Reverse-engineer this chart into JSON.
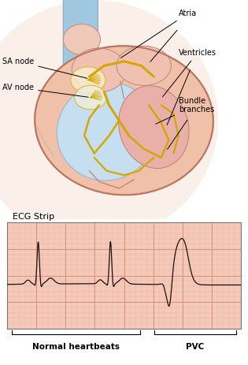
{
  "fig_width": 3.15,
  "fig_height": 4.63,
  "dpi": 100,
  "bg_color": "#ffffff",
  "ecg_bg_color": "#f5c8b8",
  "ecg_grid_major_color": "#d9917a",
  "ecg_grid_minor_color": "#ebb9a8",
  "ecg_line_color": "#1a1010",
  "ecg_title": "ECG Strip",
  "ecg_label_normal": "Normal heartbeats",
  "ecg_label_pvc": "PVC",
  "heart_bg": "#fce8e0",
  "aorta_color": "#9abfda",
  "pulm_color": "#c8d8e8",
  "heart_outer_color": "#f0b8a0",
  "heart_outer_edge": "#cc8870",
  "ventricle_right_color": "#c8dff0",
  "ventricle_left_color": "#e8b0a0",
  "atrium_color": "#f0c8b8",
  "septum_color": "#e0a898",
  "conduction_color": "#d4a800",
  "node_color": "#e8cc30",
  "node_edge": "#c0a010",
  "skin_color": "#f5c8a8",
  "spine_color": "#b8c8d0",
  "body_bg": "#f8e8e0"
}
